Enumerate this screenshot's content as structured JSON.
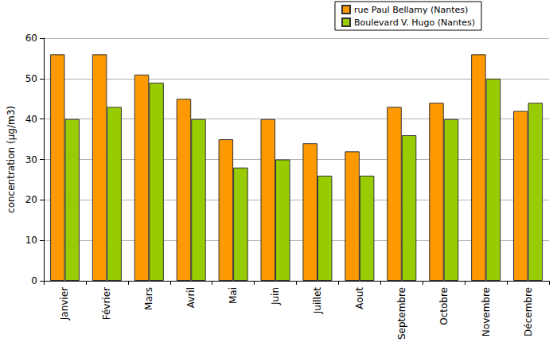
{
  "chart_data": {
    "type": "bar",
    "y_label": "concentration (µg/m3)",
    "categories": [
      "Janvier",
      "Février",
      "Mars",
      "Avril",
      "Mai",
      "Juin",
      "Juillet",
      "Aout",
      "Septembre",
      "Octobre",
      "Novembre",
      "Décembre"
    ],
    "series": [
      {
        "name": "rue Paul Bellamy (Nantes)",
        "color": "#ff9900",
        "values": [
          56,
          56,
          51,
          45,
          35,
          40,
          34,
          32,
          43,
          44,
          56,
          42
        ]
      },
      {
        "name": "Boulevard V. Hugo (Nantes)",
        "color": "#99cc00",
        "values": [
          40,
          43,
          49,
          40,
          28,
          30,
          26,
          26,
          36,
          40,
          50,
          44
        ]
      }
    ],
    "ylim": [
      0,
      60
    ],
    "yticks": [
      0,
      10,
      20,
      30,
      40,
      50,
      60
    ],
    "grid": true,
    "legend": "top-right"
  }
}
